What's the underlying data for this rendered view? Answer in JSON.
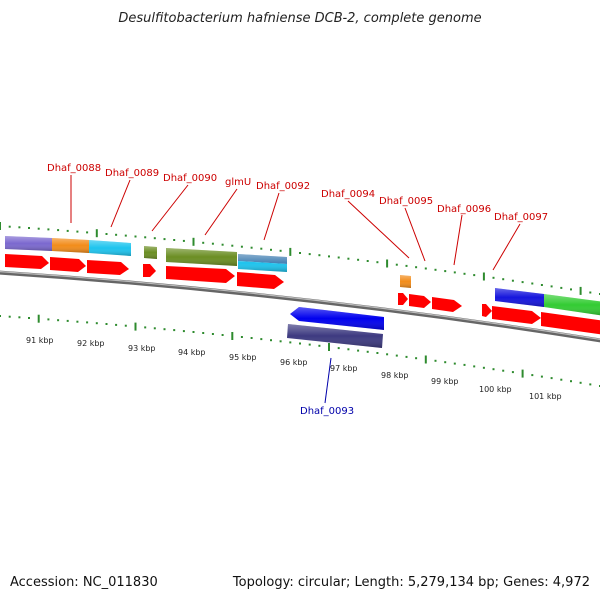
{
  "title": "Desulfitobacterium hafniense DCB-2, complete genome",
  "footer": {
    "accession": "Accession: NC_011830",
    "topology": "Topology: circular; Length: 5,279,134 bp; Genes: 4,972"
  },
  "colors": {
    "label_forward": "#cc0000",
    "label_reverse": "#0000aa",
    "cds_arrow": "#ff0000",
    "backbone": "#888888",
    "tick_green": "#2e8b2e"
  },
  "gene_labels": [
    {
      "text": "Dhaf_0088",
      "strand": "forward"
    },
    {
      "text": "Dhaf_0089",
      "strand": "forward"
    },
    {
      "text": "Dhaf_0090",
      "strand": "forward"
    },
    {
      "text": "glmU",
      "strand": "forward"
    },
    {
      "text": "Dhaf_0092",
      "strand": "forward"
    },
    {
      "text": "Dhaf_0094",
      "strand": "forward"
    },
    {
      "text": "Dhaf_0095",
      "strand": "forward"
    },
    {
      "text": "Dhaf_0096",
      "strand": "forward"
    },
    {
      "text": "Dhaf_0097",
      "strand": "forward"
    },
    {
      "text": "Dhaf_0093",
      "strand": "reverse"
    }
  ],
  "scale_labels": [
    "91 kbp",
    "92 kbp",
    "93 kbp",
    "94 kbp",
    "95 kbp",
    "96 kbp",
    "97 kbp",
    "98 kbp",
    "99 kbp",
    "100 kbp",
    "101 kbp"
  ]
}
